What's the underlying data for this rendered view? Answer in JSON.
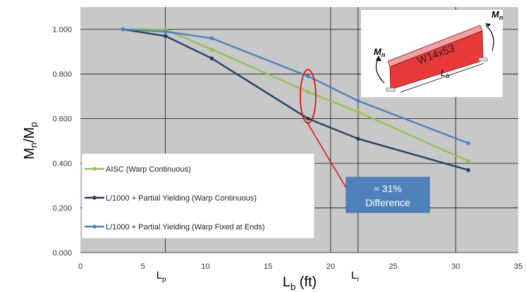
{
  "chart_data": {
    "type": "line",
    "xlabel": "L",
    "xlabel_sub": "b",
    "xlabel_unit": " (ft)",
    "ylabel_main": "M",
    "ylabel_sub1": "n",
    "ylabel_slash": "/M",
    "ylabel_sub2": "p",
    "xlim": [
      0,
      35
    ],
    "ylim": [
      0,
      1.1
    ],
    "x_ticks": [
      "0",
      "5",
      "10",
      "15",
      "20",
      "25",
      "30",
      "35"
    ],
    "y_ticks": [
      "0.000",
      "0.200",
      "0.400",
      "0.600",
      "0.800",
      "1.000"
    ],
    "grid": true,
    "legend_position": "left",
    "marker_labels": {
      "lp_main": "L",
      "lp_sub": "p",
      "lr_main": "L",
      "lr_sub": "r",
      "lp_x": 6.8,
      "lr_x": 22.2
    },
    "series": [
      {
        "name": "AISC (Warp Continuous)",
        "color": "#92c256",
        "x": [
          3.4,
          6.8,
          10.5,
          18.2,
          22.2,
          31.0
        ],
        "y": [
          1.0,
          1.0,
          0.91,
          0.72,
          0.63,
          0.41
        ]
      },
      {
        "name": "L/1000 + Partial Yielding (Warp Continuous)",
        "color": "#243f62",
        "x": [
          3.4,
          6.8,
          10.5,
          18.2,
          22.2,
          31.0
        ],
        "y": [
          1.0,
          0.97,
          0.87,
          0.6,
          0.51,
          0.37
        ]
      },
      {
        "name": "L/1000 + Partial Yielding (Warp Fixed at Ends)",
        "color": "#4f81bd",
        "x": [
          3.4,
          6.8,
          10.5,
          18.2,
          22.2,
          31.0
        ],
        "y": [
          1.0,
          0.99,
          0.96,
          0.79,
          0.68,
          0.49
        ]
      }
    ],
    "annotation": {
      "line1": "≈ 31%",
      "line2": "Difference",
      "ellipse_x": 18.2,
      "ellipse_y": 0.7
    },
    "beam_inset": {
      "label": "W14x53",
      "moment_main": "M",
      "moment_sub": "n",
      "length_main": "L",
      "length_sub": "b"
    }
  }
}
